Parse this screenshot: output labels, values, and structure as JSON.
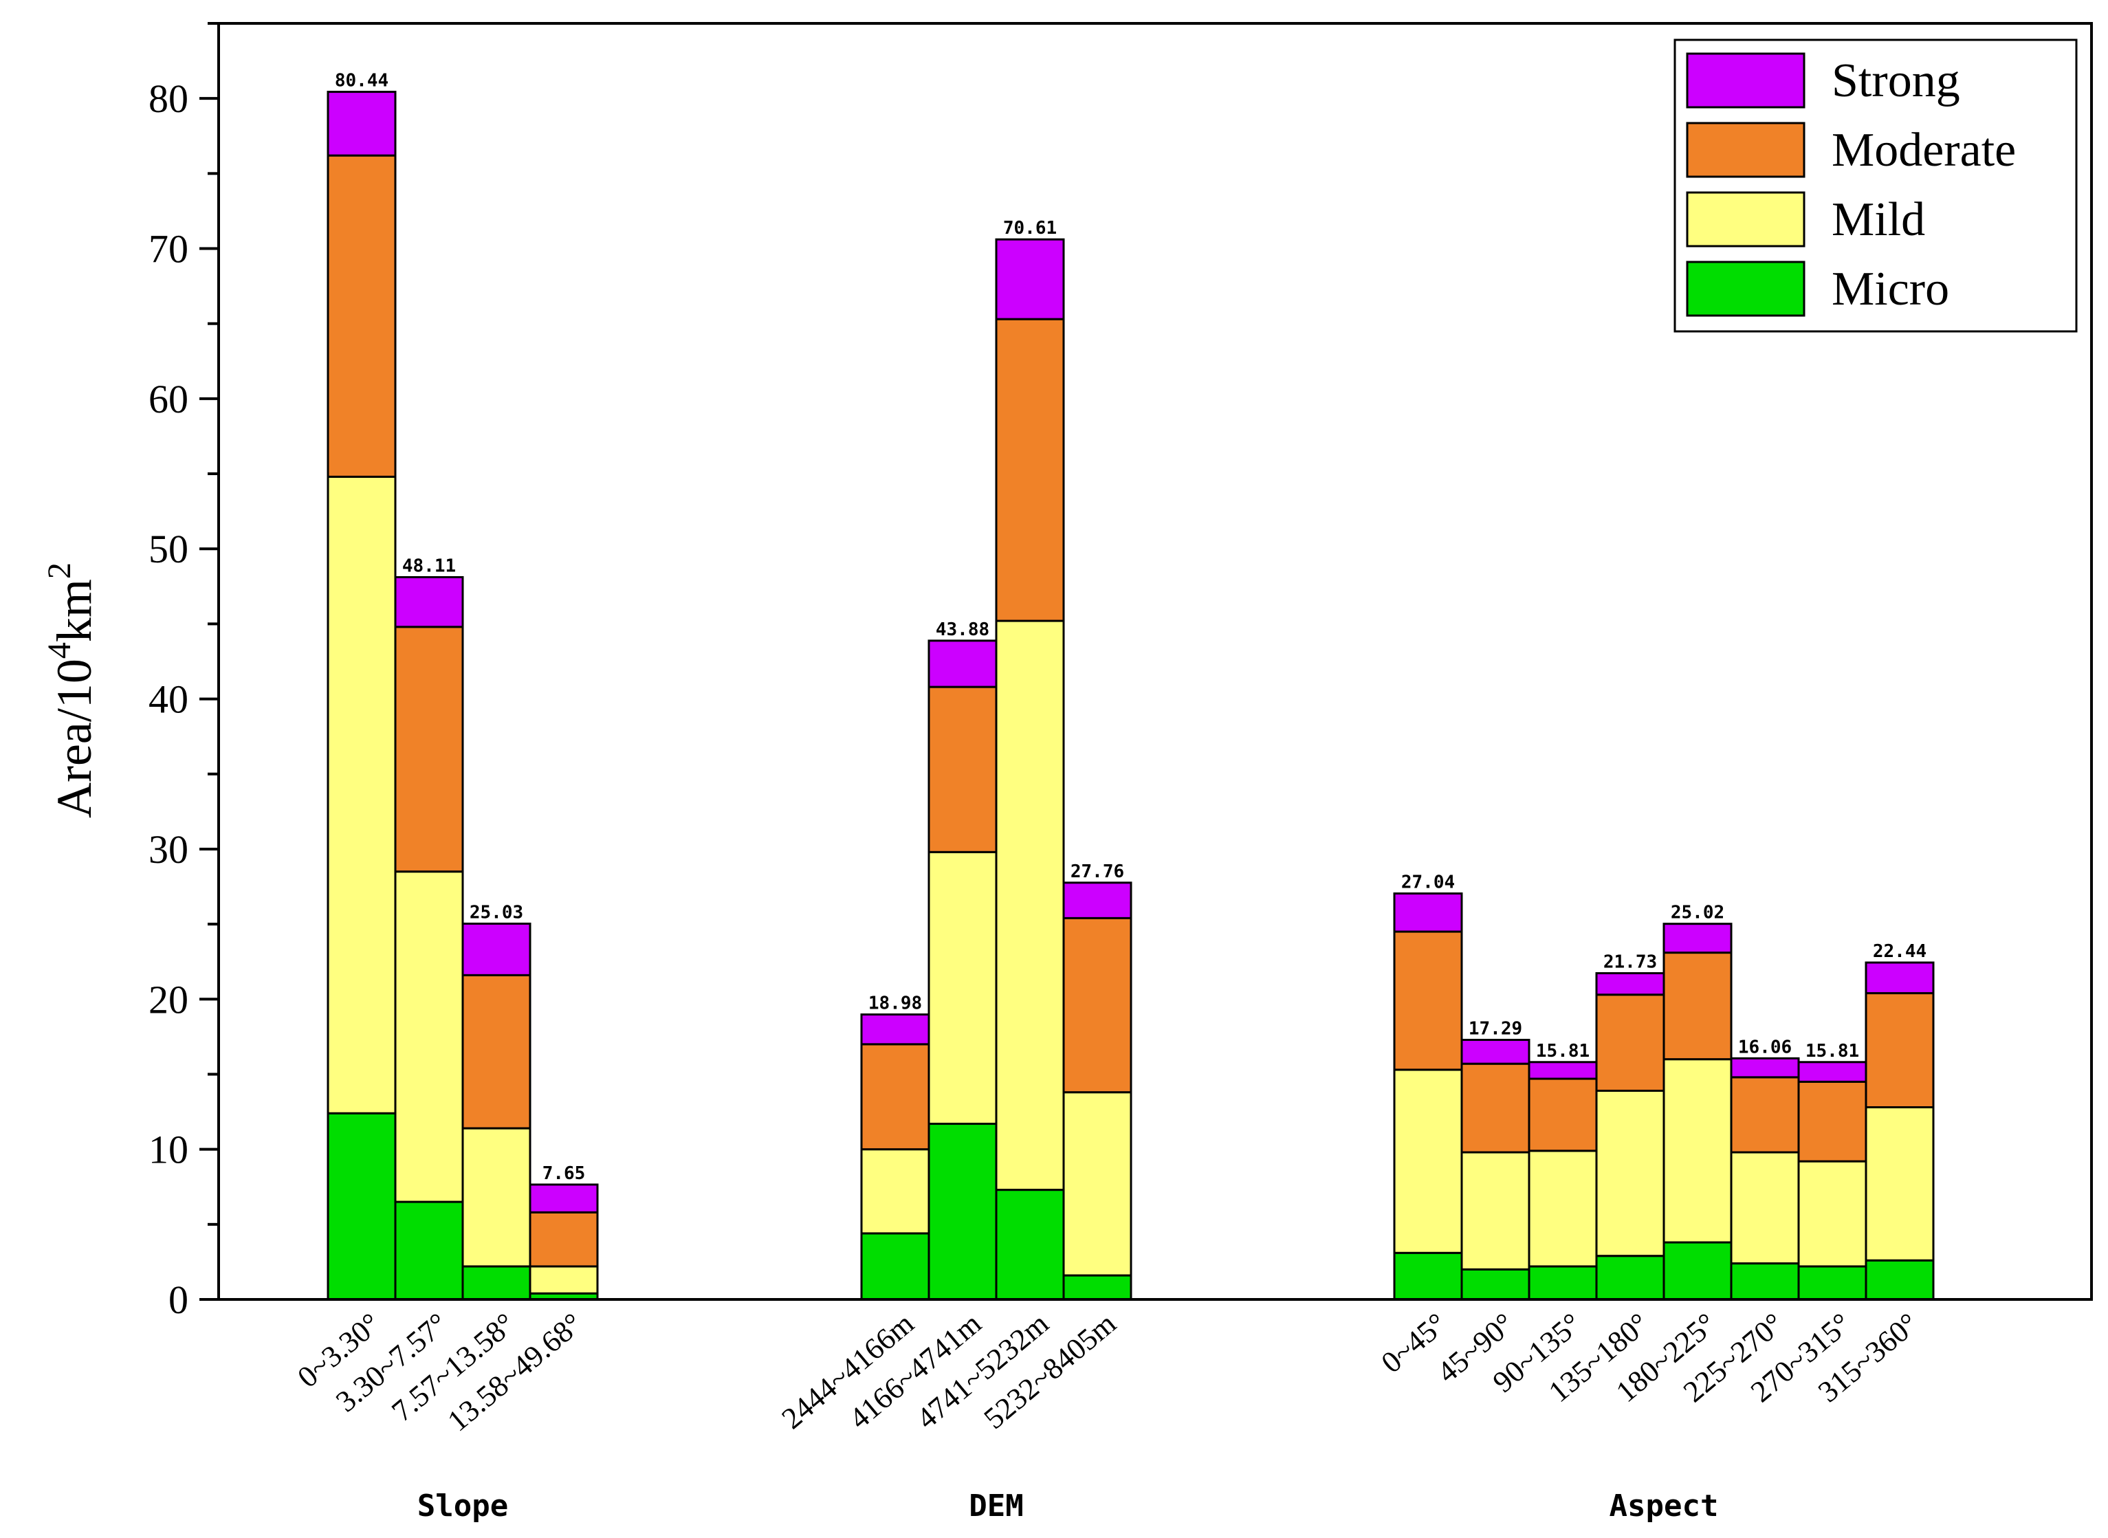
{
  "chart_data": {
    "type": "bar",
    "stacked": true,
    "title": "",
    "xlabel": "",
    "ylabel": "Area/10",
    "ylabel_sup1": "4",
    "ylabel_unit": "km",
    "ylabel_sup2": "2",
    "ylim": [
      0,
      85
    ],
    "yticks": [
      0,
      10,
      20,
      30,
      40,
      50,
      60,
      70,
      80
    ],
    "legend_position": "top-right",
    "grid": false,
    "series": [
      {
        "name": "Strong",
        "color": "#cc00ff"
      },
      {
        "name": "Moderate",
        "color": "#f08228"
      },
      {
        "name": "Mild",
        "color": "#ffff80"
      },
      {
        "name": "Micro",
        "color": "#00dd00"
      }
    ],
    "groups": [
      {
        "name": "Slope",
        "categories": [
          {
            "label": "0~3.30°",
            "micro": 12.4,
            "mild": 42.4,
            "moderate": 21.4,
            "strong": 4.24,
            "total": "80.44"
          },
          {
            "label": "3.30~7.57°",
            "micro": 6.5,
            "mild": 22.0,
            "moderate": 16.3,
            "strong": 3.31,
            "total": "48.11"
          },
          {
            "label": "7.57~13.58°",
            "micro": 2.2,
            "mild": 9.2,
            "moderate": 10.2,
            "strong": 3.43,
            "total": "25.03"
          },
          {
            "label": "13.58~49.68°",
            "micro": 0.4,
            "mild": 1.8,
            "moderate": 3.6,
            "strong": 1.85,
            "total": "7.65"
          }
        ]
      },
      {
        "name": "DEM",
        "categories": [
          {
            "label": "2444~4166m",
            "micro": 4.4,
            "mild": 5.6,
            "moderate": 7.0,
            "strong": 1.98,
            "total": "18.98"
          },
          {
            "label": "4166~4741m",
            "micro": 11.7,
            "mild": 18.1,
            "moderate": 11.0,
            "strong": 3.08,
            "total": "43.88"
          },
          {
            "label": "4741~5232m",
            "micro": 7.3,
            "mild": 37.9,
            "moderate": 20.1,
            "strong": 5.31,
            "total": "70.61"
          },
          {
            "label": "5232~8405m",
            "micro": 1.6,
            "mild": 12.2,
            "moderate": 11.6,
            "strong": 2.36,
            "total": "27.76"
          }
        ]
      },
      {
        "name": "Aspect",
        "categories": [
          {
            "label": "0~45°",
            "micro": 3.1,
            "mild": 12.2,
            "moderate": 9.2,
            "strong": 2.54,
            "total": "27.04"
          },
          {
            "label": "45~90°",
            "micro": 2.0,
            "mild": 7.8,
            "moderate": 5.9,
            "strong": 1.59,
            "total": "17.29"
          },
          {
            "label": "90~135°",
            "micro": 2.2,
            "mild": 7.7,
            "moderate": 4.8,
            "strong": 1.11,
            "total": "15.81"
          },
          {
            "label": "135~180°",
            "micro": 2.9,
            "mild": 11.0,
            "moderate": 6.4,
            "strong": 1.43,
            "total": "21.73"
          },
          {
            "label": "180~225°",
            "micro": 3.8,
            "mild": 12.2,
            "moderate": 7.1,
            "strong": 1.92,
            "total": "25.02"
          },
          {
            "label": "225~270°",
            "micro": 2.4,
            "mild": 7.4,
            "moderate": 5.0,
            "strong": 1.26,
            "total": "16.06"
          },
          {
            "label": "270~315°",
            "micro": 2.2,
            "mild": 7.0,
            "moderate": 5.3,
            "strong": 1.31,
            "total": "15.81"
          },
          {
            "label": "315~360°",
            "micro": 2.6,
            "mild": 10.2,
            "moderate": 7.6,
            "strong": 2.04,
            "total": "22.44"
          }
        ]
      }
    ]
  }
}
